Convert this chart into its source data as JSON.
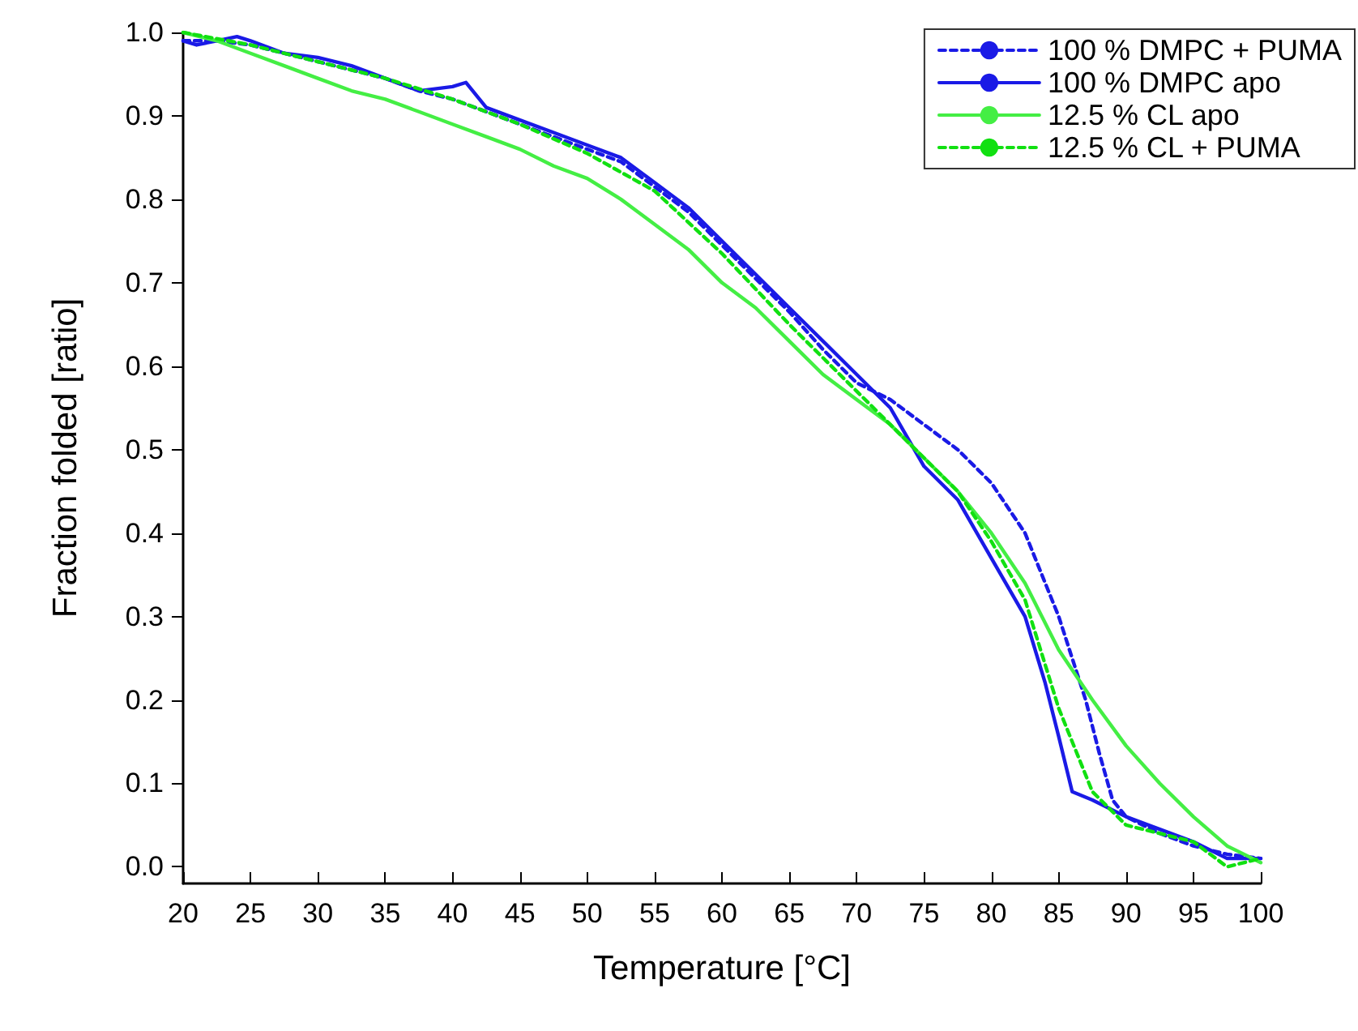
{
  "chart_data": {
    "type": "line",
    "xlabel": "Temperature [°C]",
    "ylabel": "Fraction folded [ratio]",
    "xlim": [
      20,
      100
    ],
    "xticks": [
      20,
      25,
      30,
      35,
      40,
      45,
      50,
      55,
      60,
      65,
      70,
      75,
      80,
      85,
      90,
      95,
      100
    ],
    "ylim": [
      -0.02,
      1.0
    ],
    "yticks": [
      {
        "value": 0,
        "label": "0.0"
      },
      0.1,
      0.2,
      0.3,
      0.4,
      0.5,
      0.6,
      0.7,
      0.8,
      0.9,
      {
        "value": 1,
        "label": "1.0"
      }
    ],
    "grid": false,
    "legend": "top right",
    "marker": "none",
    "series": [
      {
        "name": "100 % DMPC + PUMA",
        "color": "#1a1ae6",
        "line_style": "dashed",
        "x": [
          20,
          22.5,
          25,
          27.5,
          30,
          32.5,
          35,
          37.5,
          40,
          42.5,
          45,
          47.5,
          50,
          52.5,
          55,
          57.5,
          60,
          62.5,
          65,
          67.5,
          70,
          72.5,
          75,
          77.5,
          80,
          82.5,
          85,
          87,
          88,
          89,
          90,
          92.5,
          95,
          97.5,
          100
        ],
        "values": [
          0.99,
          0.99,
          0.985,
          0.975,
          0.965,
          0.955,
          0.945,
          0.93,
          0.92,
          0.905,
          0.89,
          0.875,
          0.86,
          0.845,
          0.815,
          0.785,
          0.745,
          0.705,
          0.665,
          0.62,
          0.58,
          0.56,
          0.53,
          0.5,
          0.46,
          0.4,
          0.3,
          0.2,
          0.137,
          0.08,
          0.06,
          0.04,
          0.025,
          0.015,
          0.01
        ]
      },
      {
        "name": "100 % DMPC apo",
        "color": "#1a1ae6",
        "line_style": "solid",
        "x": [
          20,
          21,
          22.5,
          24,
          25,
          27.5,
          30,
          32.5,
          35,
          37.5,
          40,
          41,
          42.5,
          45,
          47.5,
          50,
          52.5,
          55,
          57.5,
          60,
          62.5,
          65,
          67.5,
          70,
          72.5,
          75,
          77.5,
          80,
          82.5,
          84,
          85,
          86,
          87.5,
          90,
          92.5,
          95,
          97.5,
          100
        ],
        "values": [
          0.99,
          0.985,
          0.99,
          0.995,
          0.99,
          0.975,
          0.97,
          0.96,
          0.945,
          0.93,
          0.935,
          0.94,
          0.91,
          0.895,
          0.88,
          0.865,
          0.85,
          0.82,
          0.79,
          0.75,
          0.71,
          0.67,
          0.63,
          0.59,
          0.55,
          0.48,
          0.44,
          0.37,
          0.3,
          0.22,
          0.156,
          0.09,
          0.08,
          0.06,
          0.045,
          0.03,
          0.01,
          0.01
        ]
      },
      {
        "name": "12.5 % CL apo",
        "color": "#44ee44",
        "line_style": "solid",
        "x": [
          20,
          22.5,
          25,
          27.5,
          30,
          32.5,
          35,
          37.5,
          40,
          42.5,
          45,
          47.5,
          50,
          52.5,
          55,
          57.5,
          60,
          62.5,
          65,
          67.5,
          70,
          72.5,
          75,
          77.5,
          80,
          82.5,
          85,
          87.5,
          90,
          92.5,
          95,
          97.5,
          100
        ],
        "values": [
          1.0,
          0.99,
          0.975,
          0.96,
          0.945,
          0.93,
          0.92,
          0.905,
          0.89,
          0.875,
          0.86,
          0.84,
          0.825,
          0.8,
          0.77,
          0.74,
          0.7,
          0.67,
          0.63,
          0.59,
          0.56,
          0.53,
          0.49,
          0.45,
          0.4,
          0.34,
          0.26,
          0.2,
          0.145,
          0.1,
          0.06,
          0.025,
          0.005
        ]
      },
      {
        "name": "12.5 % CL + PUMA",
        "color": "#11e011",
        "line_style": "dashed",
        "x": [
          20,
          25,
          30,
          35,
          40,
          45,
          50,
          55,
          60,
          65,
          70,
          72.5,
          75,
          77.5,
          80,
          82.5,
          85,
          86,
          87.5,
          90,
          92.5,
          95,
          97.5,
          100
        ],
        "values": [
          1.0,
          0.985,
          0.965,
          0.945,
          0.92,
          0.89,
          0.855,
          0.81,
          0.735,
          0.65,
          0.57,
          0.53,
          0.49,
          0.45,
          0.39,
          0.32,
          0.19,
          0.15,
          0.09,
          0.05,
          0.04,
          0.03,
          0.0,
          0.01
        ]
      }
    ]
  }
}
